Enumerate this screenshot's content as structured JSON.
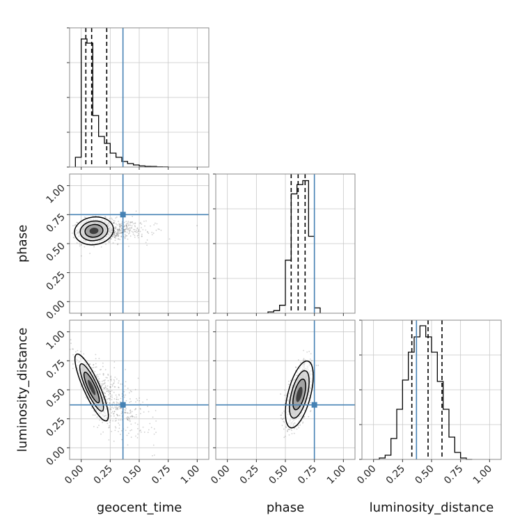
{
  "chart_data": {
    "type": "corner",
    "parameters": [
      "geocent_time",
      "phase",
      "luminosity_distance"
    ],
    "tick_labels": [
      "0.00",
      "0.25",
      "0.50",
      "0.75",
      "1.00"
    ],
    "axis_range": [
      -0.1,
      1.1
    ],
    "grid": true,
    "truth_color": "#4682b4",
    "truths": {
      "geocent_time": 0.36,
      "phase": 0.75,
      "luminosity_distance": 0.37
    },
    "quantiles": {
      "geocent_time": [
        0.04,
        0.09,
        0.22
      ],
      "phase": [
        0.55,
        0.61,
        0.67
      ],
      "luminosity_distance": [
        0.33,
        0.47,
        0.59
      ]
    },
    "histograms": [
      {
        "param": "geocent_time",
        "bin_edges": [
          -0.05,
          0.0,
          0.05,
          0.1,
          0.15,
          0.2,
          0.25,
          0.3,
          0.35,
          0.4,
          0.45,
          0.5,
          0.55,
          0.6,
          0.65,
          0.7,
          0.75
        ],
        "counts": [
          0.07,
          0.92,
          0.89,
          0.37,
          0.22,
          0.17,
          0.1,
          0.07,
          0.04,
          0.025,
          0.015,
          0.008,
          0.005,
          0.004,
          0.002,
          0.001
        ],
        "ymax": 1.0
      },
      {
        "param": "phase",
        "bin_edges": [
          0.35,
          0.4,
          0.45,
          0.5,
          0.55,
          0.6,
          0.65,
          0.7,
          0.75,
          0.8
        ],
        "counts": [
          0.01,
          0.02,
          0.06,
          0.4,
          0.9,
          0.97,
          1.0,
          0.58,
          0.04
        ],
        "ymax": 1.05
      },
      {
        "param": "luminosity_distance",
        "bin_edges": [
          0.0,
          0.05,
          0.1,
          0.15,
          0.2,
          0.25,
          0.3,
          0.35,
          0.4,
          0.45,
          0.5,
          0.55,
          0.6,
          0.65,
          0.7,
          0.75,
          0.8,
          0.85
        ],
        "counts": [
          0.0,
          0.01,
          0.03,
          0.15,
          0.36,
          0.57,
          0.77,
          0.88,
          0.96,
          0.88,
          0.77,
          0.56,
          0.36,
          0.16,
          0.05,
          0.01,
          0.0
        ],
        "ymax": 1.0
      }
    ],
    "pairs": [
      {
        "x": "geocent_time",
        "y": "phase",
        "center": [
          0.11,
          0.61
        ],
        "sigma": [
          0.07,
          0.05
        ],
        "corr": 0.1,
        "extra_x": [
          0.15,
          0.65
        ]
      },
      {
        "x": "geocent_time",
        "y": "luminosity_distance",
        "center": [
          0.09,
          0.52
        ],
        "sigma": [
          0.06,
          0.12
        ],
        "corr": -0.85,
        "extra_x": [
          0.15,
          0.65
        ]
      },
      {
        "x": "phase",
        "y": "luminosity_distance",
        "center": [
          0.62,
          0.46
        ],
        "sigma": [
          0.05,
          0.12
        ],
        "corr": 0.55,
        "extra_x": [
          0,
          0
        ]
      }
    ]
  }
}
